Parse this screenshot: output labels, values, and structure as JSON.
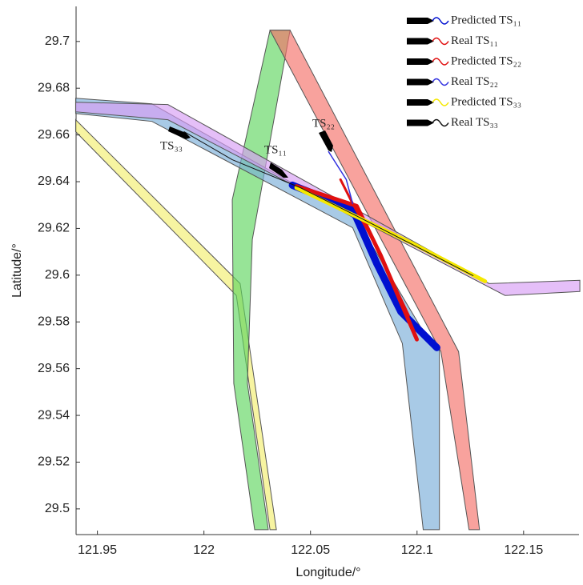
{
  "chart_data": {
    "type": "trajectory",
    "xlabel": "Longitude/°",
    "ylabel": "Latitude/°",
    "xlim": [
      121.94,
      122.176
    ],
    "ylim": [
      29.489,
      29.715
    ],
    "xticks": [
      121.95,
      122,
      122.05,
      122.1,
      122.15
    ],
    "yticks": [
      29.5,
      29.52,
      29.54,
      29.56,
      29.58,
      29.6,
      29.62,
      29.64,
      29.66,
      29.68,
      29.7
    ],
    "bands": [
      {
        "color": "#f2ee6e",
        "x": [
          121.9398,
          122.017,
          122.034,
          122.031,
          122.0152,
          121.9398
        ],
        "y": [
          29.6665,
          29.5964,
          29.4911,
          29.4911,
          29.5913,
          29.6614
        ]
      },
      {
        "color": "#5fd65f",
        "x": [
          122.031,
          122.0404,
          122.0227,
          122.0204,
          122.0302,
          122.0238,
          122.014,
          122.0133
        ],
        "y": [
          29.7048,
          29.7048,
          29.6152,
          29.5537,
          29.4911,
          29.4911,
          29.5537,
          29.6323
        ]
      },
      {
        "color": "#f47068",
        "x": [
          122.031,
          122.0404,
          122.1195,
          122.1293,
          122.1244,
          122.1112
        ],
        "y": [
          29.7048,
          29.7048,
          29.5673,
          29.4911,
          29.4911,
          29.5673
        ]
      },
      {
        "color": "#7aaed8",
        "x": [
          121.9398,
          121.9756,
          122.0717,
          122.1018,
          122.1105,
          122.1105,
          122.1029,
          122.0931,
          122.0698,
          121.9756,
          121.9398
        ],
        "y": [
          29.6757,
          29.6733,
          29.6238,
          29.5776,
          29.568,
          29.4911,
          29.4911,
          29.5708,
          29.6203,
          29.6658,
          29.6692
        ]
      },
      {
        "color": "#d79cf5",
        "x": [
          121.9398,
          121.9831,
          122.1338,
          122.1764,
          122.1764,
          122.1413,
          121.9831,
          121.9398
        ],
        "y": [
          29.674,
          29.673,
          29.5964,
          29.5978,
          29.593,
          29.5913,
          29.6665,
          29.6699
        ]
      }
    ],
    "series": [
      {
        "name": "Predicted TS₁₁",
        "color": "#0010d0",
        "x": [
          122.0415,
          122.0698,
          122.0811,
          122.0924,
          122.1093
        ],
        "y": [
          29.6385,
          29.6282,
          29.605,
          29.5844,
          29.569
        ]
      },
      {
        "name": "Real TS₁₁",
        "color": "#e01010",
        "x": [
          122.0434,
          122.0717,
          122.083,
          122.0999
        ],
        "y": [
          29.6381,
          29.6296,
          29.6084,
          29.5725
        ]
      },
      {
        "name": "Predicted TS₂₂",
        "color": "#e01010",
        "x": [
          122.0641,
          122.0698,
          122.0792,
          122.0961
        ],
        "y": [
          29.6409,
          29.6306,
          29.6152,
          29.5827
        ]
      },
      {
        "name": "Real TS₂₂",
        "color": "#3030e0",
        "x": [
          122.0585,
          122.0668,
          122.0698
        ],
        "y": [
          29.6528,
          29.6409,
          29.6306
        ]
      },
      {
        "name": "Predicted TS₃₃",
        "color": "#f5e800",
        "x": [
          122.0434,
          122.098,
          122.1319
        ],
        "y": [
          29.6374,
          29.6135,
          29.5974
        ]
      },
      {
        "name": "Real TS₃₃",
        "color": "#111111",
        "x": [
          121.9907,
          122.0133,
          122.0453,
          122.0698,
          122.1263
        ],
        "y": [
          29.6614,
          29.6494,
          29.6374,
          29.6262,
          29.5998
        ]
      }
    ],
    "annotations": [
      "TS₃₃",
      "TS₁₁",
      "TS₂₂"
    ]
  }
}
